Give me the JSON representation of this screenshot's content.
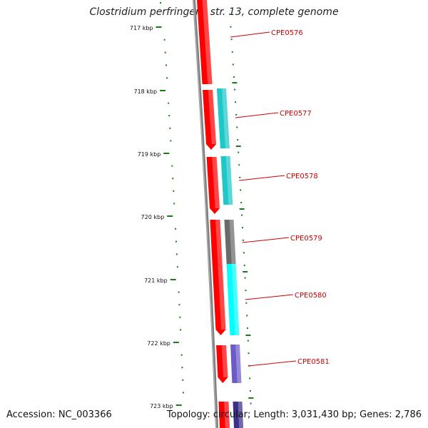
{
  "title": "Clostridium perfringens str. 13, complete genome",
  "footer": {
    "accession": "Accession: NC_003366",
    "summary": "Topology: circular; Length: 3,031,430 bp; Genes: 2,786"
  },
  "colors": {
    "tick": "#1a7a1a",
    "backbone": "#808080",
    "label": "#cc0000",
    "gene_forward": "#ff0000",
    "cog_cyan_dark": "#1ec8c8",
    "cog_gray": "#6a6a6a",
    "cog_cyan": "#00ffff",
    "cog_purple": "#6b5bc8",
    "cog_darkblue": "#3a2f8a"
  },
  "ruler": [
    {
      "label": "717 kbp"
    },
    {
      "label": "718 kbp"
    },
    {
      "label": "719 kbp"
    },
    {
      "label": "720 kbp"
    },
    {
      "label": "721 kbp"
    },
    {
      "label": "722 kbp"
    },
    {
      "label": "723 kbp"
    }
  ],
  "genes": [
    {
      "label": "CPE0576",
      "cog_color": ""
    },
    {
      "label": "CPE0577",
      "cog_color": "#1ec8c8"
    },
    {
      "label": "CPE0578",
      "cog_color": "#1ec8c8"
    },
    {
      "label": "CPE0579",
      "cog_color": "#6a6a6a"
    },
    {
      "label": "CPE0580",
      "cog_color": "#00ffff"
    },
    {
      "label": "CPE0581",
      "cog_color": "#6b5bc8"
    },
    {
      "label": "",
      "cog_color": "#3a2f8a"
    }
  ]
}
